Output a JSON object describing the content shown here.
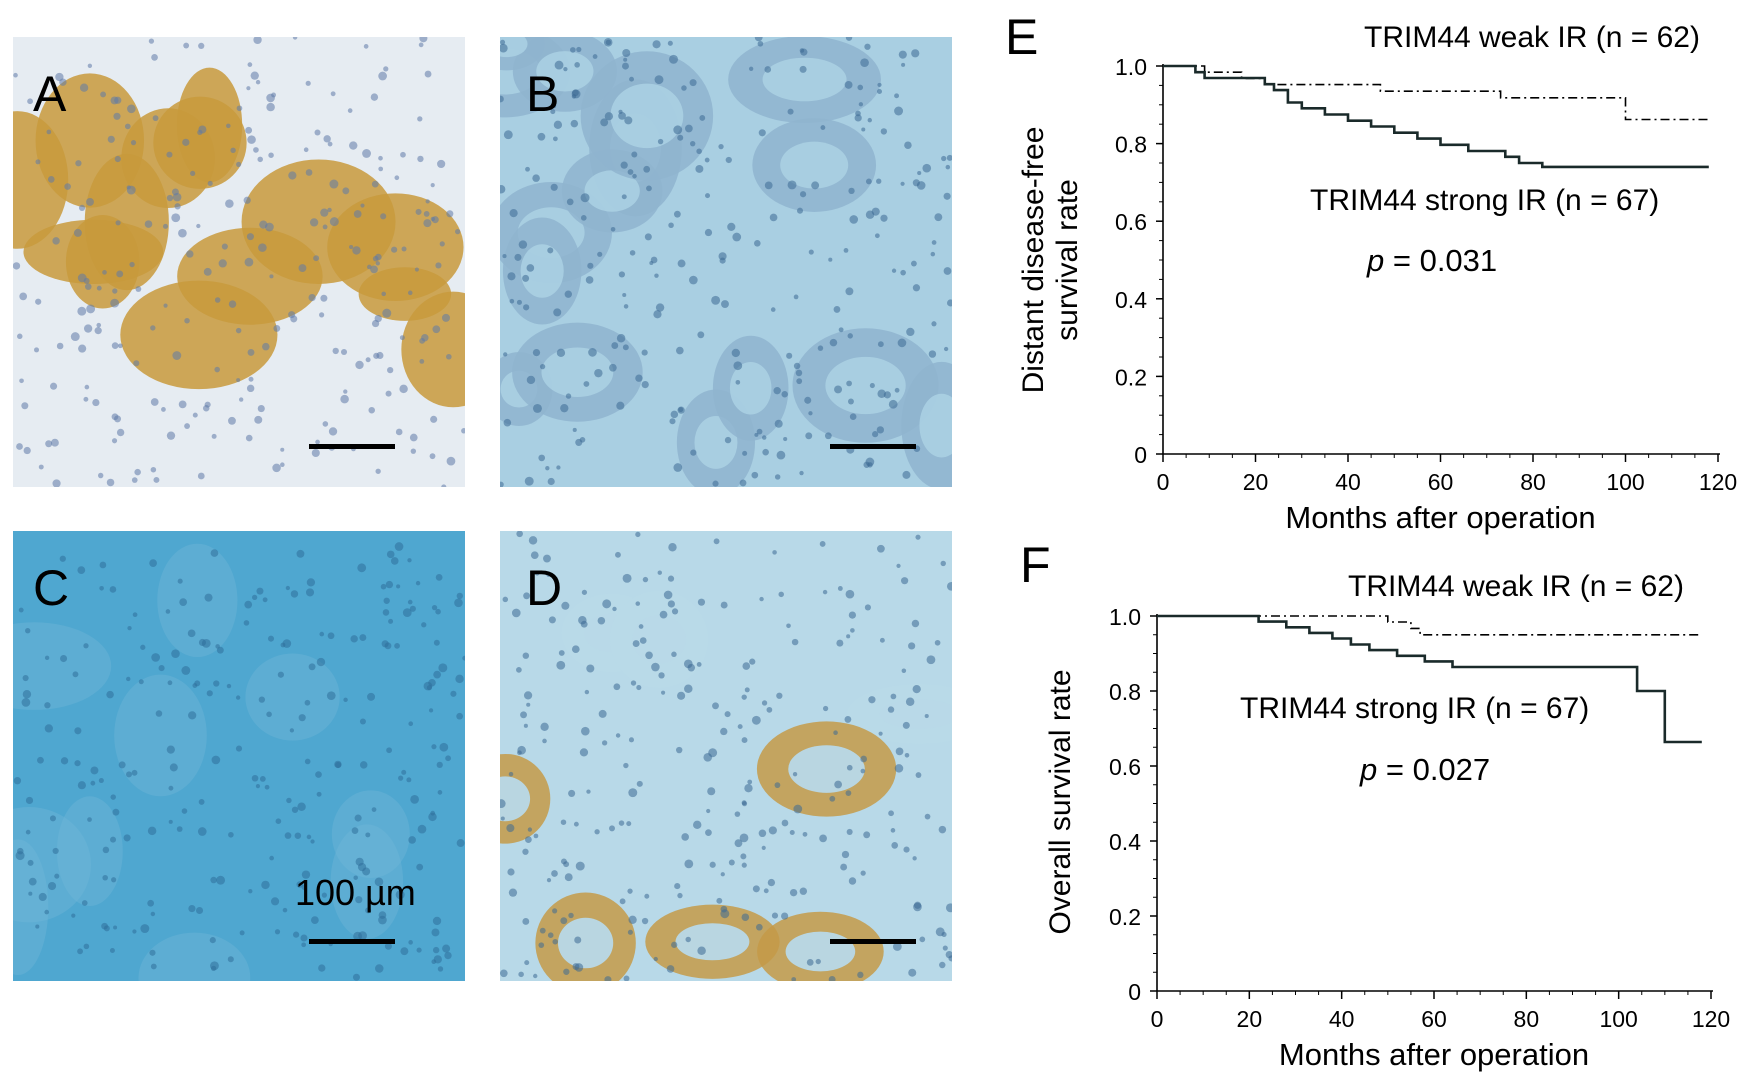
{
  "panels": {
    "A": {
      "letter": "A",
      "base": "#e6ecf2",
      "cell": "#c89a3c",
      "nucleus": "#5f7aa8"
    },
    "B": {
      "letter": "B",
      "base": "#a9cfe2",
      "cell": "#8fb4cf",
      "nucleus": "#3d6a93"
    },
    "C": {
      "letter": "C",
      "base": "#4fa7d0",
      "cell": "#6fb6d8",
      "nucleus": "#2f6f9a"
    },
    "D": {
      "letter": "D",
      "base": "#b8d9e8",
      "cell": "#c49a48",
      "nucleus": "#3d6a93"
    }
  },
  "scale_bar": {
    "label": "100 µm"
  },
  "figures": {
    "E": {
      "letter": "E"
    },
    "F": {
      "letter": "F"
    }
  },
  "chart_data": [
    {
      "type": "line",
      "panel": "E",
      "ylabel_lines": [
        "Distant disease-free",
        "survival rate"
      ],
      "xlabel": "Months after operation",
      "xlim": [
        0,
        120
      ],
      "ylim": [
        0,
        1.0
      ],
      "xticks": [
        "0",
        "20",
        "40",
        "60",
        "80",
        "100",
        "120"
      ],
      "yticks": [
        "0",
        "0.2",
        "0.4",
        "0.6",
        "0.8",
        "1.0"
      ],
      "annotations": {
        "weak_label": "TRIM44 weak IR (n = 62)",
        "strong_label": "TRIM44 strong IR (n = 67)",
        "p_symbol": "p",
        "p_value": " = 0.031"
      },
      "series": [
        {
          "name": "TRIM44 weak IR (n = 62)",
          "style": "dash-dot",
          "x": [
            0,
            9,
            17,
            22,
            30,
            40,
            47,
            66,
            73,
            87,
            100,
            118
          ],
          "y": [
            1.0,
            0.984,
            0.968,
            0.952,
            0.952,
            0.952,
            0.935,
            0.935,
            0.918,
            0.918,
            0.862,
            0.862
          ]
        },
        {
          "name": "TRIM44 strong IR (n = 67)",
          "style": "solid",
          "x": [
            0,
            7,
            9,
            15,
            22,
            24,
            27,
            30,
            35,
            40,
            45,
            50,
            55,
            60,
            66,
            74,
            77,
            82,
            100,
            118
          ],
          "y": [
            1.0,
            0.984,
            0.969,
            0.969,
            0.953,
            0.938,
            0.906,
            0.891,
            0.875,
            0.859,
            0.844,
            0.828,
            0.813,
            0.797,
            0.781,
            0.766,
            0.75,
            0.74,
            0.74,
            0.74
          ]
        }
      ]
    },
    {
      "type": "line",
      "panel": "F",
      "ylabel_lines": [
        "Overall survival rate"
      ],
      "xlabel": "Months after operation",
      "xlim": [
        0,
        120
      ],
      "ylim": [
        0,
        1.0
      ],
      "xticks": [
        "0",
        "20",
        "40",
        "60",
        "80",
        "100",
        "120"
      ],
      "yticks": [
        "0",
        "0.2",
        "0.4",
        "0.6",
        "0.8",
        "1.0"
      ],
      "annotations": {
        "weak_label": "TRIM44 weak IR (n = 62)",
        "strong_label": "TRIM44 strong IR (n = 67)",
        "p_symbol": "p",
        "p_value": " = 0.027"
      },
      "series": [
        {
          "name": "TRIM44 weak IR (n = 62)",
          "style": "dash-dot",
          "x": [
            0,
            48,
            50,
            55,
            57,
            118
          ],
          "y": [
            1.0,
            1.0,
            0.984,
            0.967,
            0.95,
            0.95
          ]
        },
        {
          "name": "TRIM44 strong IR (n = 67)",
          "style": "solid",
          "x": [
            0,
            22,
            28,
            33,
            38,
            42,
            46,
            52,
            58,
            64,
            70,
            104,
            110,
            118
          ],
          "y": [
            1.0,
            0.985,
            0.97,
            0.955,
            0.94,
            0.924,
            0.909,
            0.894,
            0.879,
            0.864,
            0.864,
            0.8,
            0.664,
            0.664
          ]
        }
      ]
    }
  ]
}
